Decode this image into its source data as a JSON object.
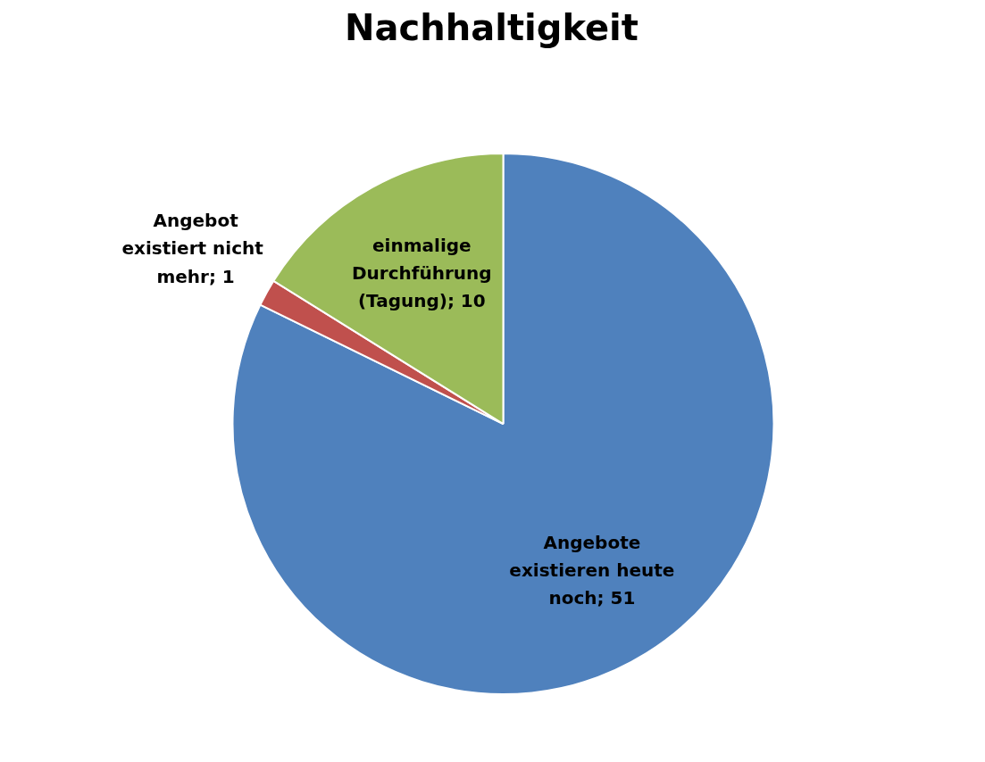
{
  "chart_data": {
    "type": "pie",
    "title": "Nachhaltigkeit",
    "categories": [
      "Angebote existieren heute noch",
      "Angebot existiert  nicht mehr",
      "einmalige Durchführung (Tagung)"
    ],
    "values": [
      51,
      1,
      10
    ],
    "colors": [
      "#4f81bd",
      "#c0504d",
      "#9bbb59"
    ],
    "value_labels": [
      "; 51",
      "; 1",
      "; 10"
    ]
  }
}
